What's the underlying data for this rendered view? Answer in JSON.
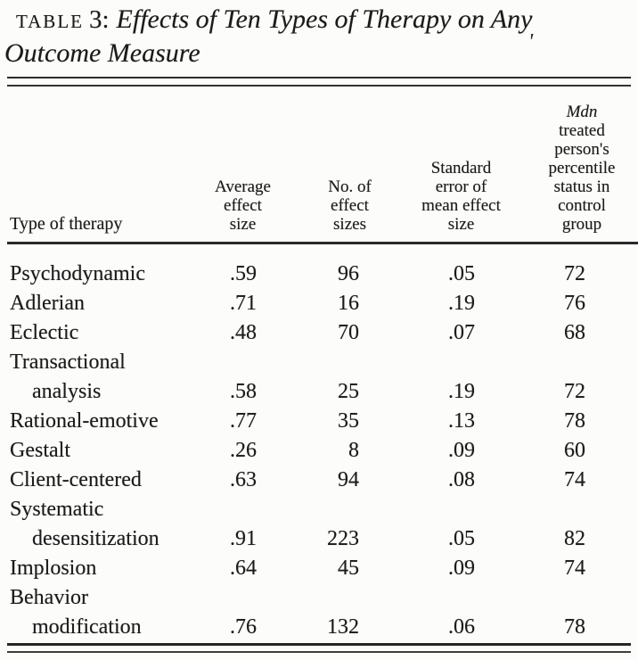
{
  "title": {
    "label": "TABLE",
    "number": "3:",
    "italic_line1": "Effects of Ten Types of Therapy on Any",
    "line2": "Outcome Measure"
  },
  "artifact_mark": "'",
  "table": {
    "columns": [
      {
        "label": "Type of therapy"
      },
      {
        "label": "Average\neffect\nsize"
      },
      {
        "label": "No. of\neffect\nsizes"
      },
      {
        "label": "Standard\nerror of\nmean effect\nsize"
      },
      {
        "label_italic": "Mdn",
        "label": "treated\nperson's\npercentile\nstatus in\ncontrol\ngroup"
      }
    ],
    "rows": [
      {
        "therapy": "Psychodynamic",
        "avg_effect_size": ".59",
        "num_effect_sizes": "96",
        "std_error": ".05",
        "mdn_percentile": "72"
      },
      {
        "therapy": "Adlerian",
        "avg_effect_size": ".71",
        "num_effect_sizes": "16",
        "std_error": ".19",
        "mdn_percentile": "76"
      },
      {
        "therapy": "Eclectic",
        "avg_effect_size": ".48",
        "num_effect_sizes": "70",
        "std_error": ".07",
        "mdn_percentile": "68"
      },
      {
        "therapy": "Transactional",
        "avg_effect_size": "",
        "num_effect_sizes": "",
        "std_error": "",
        "mdn_percentile": ""
      },
      {
        "therapy": "analysis",
        "avg_effect_size": ".58",
        "num_effect_sizes": "25",
        "std_error": ".19",
        "mdn_percentile": "72"
      },
      {
        "therapy": "Rational-emotive",
        "avg_effect_size": ".77",
        "num_effect_sizes": "35",
        "std_error": ".13",
        "mdn_percentile": "78"
      },
      {
        "therapy": "Gestalt",
        "avg_effect_size": ".26",
        "num_effect_sizes": "8",
        "std_error": ".09",
        "mdn_percentile": "60"
      },
      {
        "therapy": "Client-centered",
        "avg_effect_size": ".63",
        "num_effect_sizes": "94",
        "std_error": ".08",
        "mdn_percentile": "74"
      },
      {
        "therapy": "Systematic",
        "avg_effect_size": "",
        "num_effect_sizes": "",
        "std_error": "",
        "mdn_percentile": ""
      },
      {
        "therapy": "desensitization",
        "avg_effect_size": ".91",
        "num_effect_sizes": "223",
        "std_error": ".05",
        "mdn_percentile": "82"
      },
      {
        "therapy": "Implosion",
        "avg_effect_size": ".64",
        "num_effect_sizes": "45",
        "std_error": ".09",
        "mdn_percentile": "74"
      },
      {
        "therapy": "Behavior",
        "avg_effect_size": "",
        "num_effect_sizes": "",
        "std_error": "",
        "mdn_percentile": ""
      },
      {
        "therapy": "modification",
        "avg_effect_size": ".76",
        "num_effect_sizes": "132",
        "std_error": ".06",
        "mdn_percentile": "78"
      }
    ]
  }
}
